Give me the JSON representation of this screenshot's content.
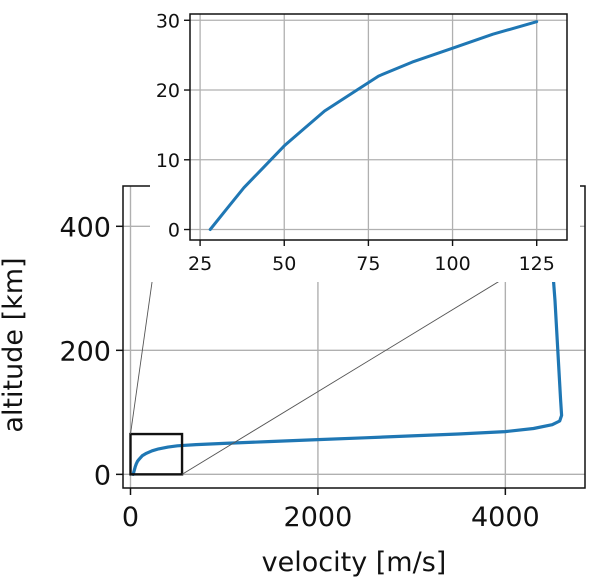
{
  "chart_data": [
    {
      "type": "line",
      "xlabel": "velocity [m/s]",
      "ylabel": "altitude [km]",
      "xlim": [
        -80,
        4850
      ],
      "ylim": [
        -22,
        465
      ],
      "xticks": [
        0,
        2000,
        4000
      ],
      "yticks": [
        0,
        200,
        400
      ],
      "grid": true,
      "series_color": "#1f77b4",
      "series": [
        {
          "x": [
            28,
            40,
            50,
            62,
            75,
            95,
            125,
            170,
            230,
            300,
            400,
            500,
            700,
            1000,
            1500,
            2000,
            2500,
            3000,
            3500,
            4000,
            4300,
            4500,
            4580,
            4600,
            4590,
            4560,
            4530,
            4500,
            4470,
            4450
          ],
          "y": [
            0,
            6,
            12,
            17,
            21,
            25,
            30,
            34,
            38,
            41,
            44,
            46,
            48,
            50,
            53,
            56,
            59,
            62,
            65,
            69,
            74,
            80,
            86,
            95,
            120,
            200,
            280,
            340,
            390,
            430
          ]
        }
      ],
      "zoom_box": {
        "xlim": [
          0,
          550
        ],
        "ylim": [
          0,
          65
        ]
      }
    },
    {
      "type": "line",
      "role": "inset",
      "xlim": [
        22,
        134
      ],
      "ylim": [
        -1.5,
        30.9
      ],
      "xticks": [
        25,
        50,
        75,
        100,
        125
      ],
      "yticks": [
        0,
        10,
        20,
        30
      ],
      "grid": true,
      "series_color": "#1f77b4",
      "series": [
        {
          "x": [
            28,
            33,
            38,
            44,
            50,
            56,
            62,
            70,
            78,
            88,
            100,
            112,
            125
          ],
          "y": [
            0,
            3,
            6,
            9,
            12,
            14.5,
            17,
            19.5,
            22,
            24,
            26,
            28,
            29.8
          ]
        }
      ]
    }
  ]
}
